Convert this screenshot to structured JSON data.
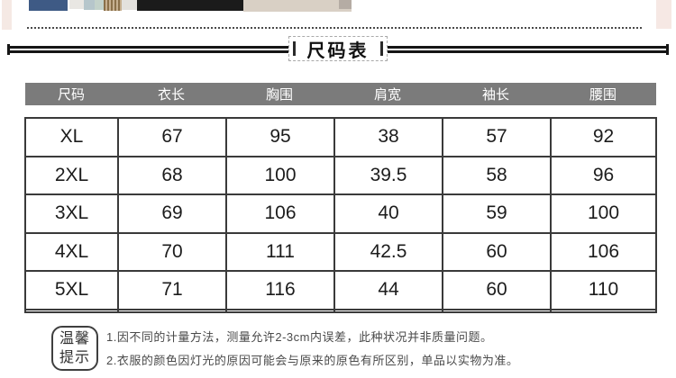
{
  "title": "尺码表",
  "top_strip": {
    "blocks": [
      {
        "name": "pink-left",
        "color": "#f5e9e4"
      },
      {
        "name": "navy-garment",
        "color": "#3e5a85"
      },
      {
        "name": "light-gray",
        "color": "#e9e7e3"
      },
      {
        "name": "light-blue",
        "color": "#b6c6cb"
      },
      {
        "name": "pale-teal",
        "color": "#c3d2ca"
      },
      {
        "name": "tan-stripes",
        "color": "#b3966b"
      },
      {
        "name": "light-gray-2",
        "color": "#e3e1dd"
      },
      {
        "name": "black-garment",
        "color": "#1b1b1b"
      },
      {
        "name": "beige-garment",
        "color": "#d9d0c5"
      },
      {
        "name": "gray-tab",
        "color": "#b5aca4"
      },
      {
        "name": "pink-right",
        "color": "#f6e8e4"
      }
    ]
  },
  "table": {
    "headers": [
      "尺码",
      "衣长",
      "胸围",
      "肩宽",
      "袖长",
      "腰围"
    ],
    "rows": [
      [
        "XL",
        "67",
        "95",
        "38",
        "57",
        "92"
      ],
      [
        "2XL",
        "68",
        "100",
        "39.5",
        "58",
        "96"
      ],
      [
        "3XL",
        "69",
        "106",
        "40",
        "59",
        "100"
      ],
      [
        "4XL",
        "70",
        "111",
        "42.5",
        "60",
        "106"
      ],
      [
        "5XL",
        "71",
        "116",
        "44",
        "60",
        "110"
      ]
    ],
    "has_empty_last_row": true
  },
  "tips": {
    "badge_line1": "温馨",
    "badge_line2": "提示",
    "lines": [
      "1.因不同的计量方法，测量允许2-3cm内误差，此种状况并非质量问题。",
      "2.衣服的颜色因灯光的原因可能会与原来的原色有所区别，单品以实物为准。"
    ]
  },
  "colors": {
    "header_bg": "#7b7b7b",
    "header_text": "#ffffff",
    "table_border": "#3a3a3a",
    "rule": "#161616",
    "tip_text": "#4a4a4a"
  }
}
